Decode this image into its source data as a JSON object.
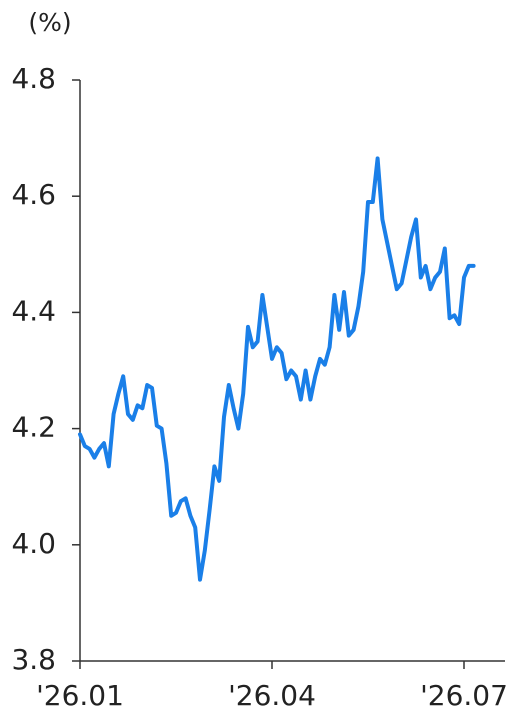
{
  "chart_data": {
    "type": "line",
    "ylabel": "(%)",
    "categories": [
      "'26.01",
      null,
      null,
      null,
      null,
      null,
      null,
      null,
      null,
      null,
      null,
      null,
      null,
      null,
      null,
      null,
      null,
      null,
      null,
      null,
      null,
      null,
      null,
      null,
      null,
      null,
      null,
      null,
      null,
      null,
      null,
      null,
      null,
      null,
      null,
      null,
      null,
      null,
      null,
      null,
      "'26.04",
      null,
      null,
      null,
      null,
      null,
      null,
      null,
      null,
      null,
      null,
      null,
      null,
      null,
      null,
      null,
      null,
      null,
      null,
      null,
      null,
      null,
      null,
      null,
      null,
      null,
      null,
      null,
      null,
      null,
      null,
      null,
      null,
      null,
      null,
      null,
      null,
      null,
      null,
      null,
      "'26.07",
      null,
      null
    ],
    "series": [
      {
        "name": null,
        "color": "#1a7fe8",
        "values": [
          4.19,
          4.17,
          4.165,
          4.15,
          4.165,
          4.175,
          4.135,
          4.225,
          4.26,
          4.29,
          4.225,
          4.215,
          4.24,
          4.235,
          4.275,
          4.27,
          4.205,
          4.2,
          4.14,
          4.05,
          4.055,
          4.075,
          4.08,
          4.05,
          4.03,
          3.94,
          3.99,
          4.06,
          4.135,
          4.11,
          4.22,
          4.275,
          4.235,
          4.2,
          4.26,
          4.375,
          4.34,
          4.35,
          4.43,
          4.375,
          4.32,
          4.34,
          4.33,
          4.285,
          4.3,
          4.29,
          4.25,
          4.3,
          4.25,
          4.29,
          4.32,
          4.31,
          4.34,
          4.43,
          4.37,
          4.435,
          4.36,
          4.37,
          4.41,
          4.47,
          4.59,
          4.59,
          4.665,
          4.56,
          4.52,
          4.48,
          4.44,
          4.45,
          4.49,
          4.53,
          4.56,
          4.46,
          4.48,
          4.44,
          4.46,
          4.47,
          4.51,
          4.39,
          4.395,
          4.38,
          4.46,
          4.48,
          4.48
        ]
      }
    ],
    "ylim": [
      3.8,
      4.8
    ],
    "yticks": [
      3.8,
      {
        "value": 4,
        "label": "4.0"
      },
      4.2,
      4.4,
      4.6,
      4.8
    ]
  }
}
